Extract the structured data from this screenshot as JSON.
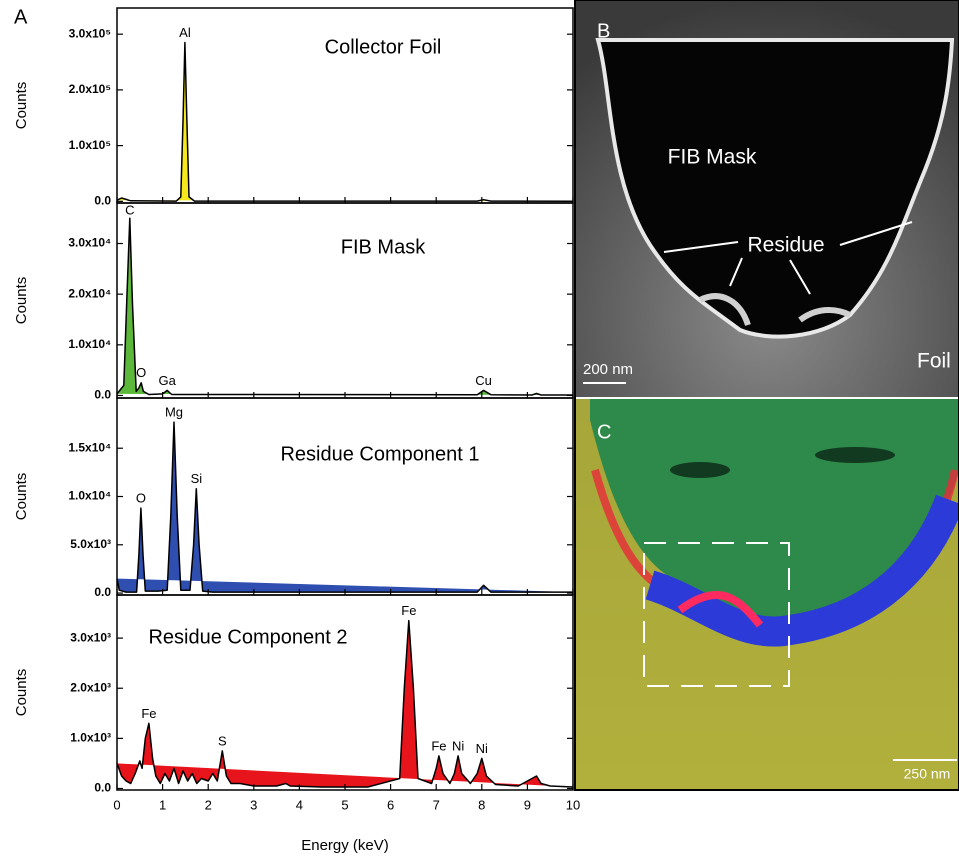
{
  "panel_label": "A",
  "chart_data": [
    {
      "type": "area",
      "title": "Collector Foil",
      "ylabel": "Counts",
      "color": "#f5e81c",
      "xlim": [
        0,
        10
      ],
      "ylim": [
        -3000,
        347000
      ],
      "yticks": [
        {
          "value": 0,
          "label": "0.0"
        },
        {
          "value": 100000,
          "label": "1.0x10⁵"
        },
        {
          "value": 200000,
          "label": "2.0x10⁵"
        },
        {
          "value": 300000,
          "label": "3.0x10⁵"
        }
      ],
      "x": [
        0,
        0.1,
        0.3,
        1.3,
        1.4,
        1.45,
        1.49,
        1.53,
        1.58,
        1.7,
        7.9,
        8.04,
        8.2,
        10
      ],
      "values": [
        2000,
        6000,
        1000,
        500,
        8000,
        150000,
        285000,
        150000,
        8000,
        500,
        500,
        3000,
        500,
        300
      ],
      "annotations": [
        {
          "text": "Al",
          "x": 1.49
        }
      ]
    },
    {
      "type": "area",
      "title": "FIB Mask",
      "ylabel": "Counts",
      "color": "#5cb83a",
      "xlim": [
        0,
        10
      ],
      "ylim": [
        -500,
        38000
      ],
      "yticks": [
        {
          "value": 0,
          "label": "0.0"
        },
        {
          "value": 10000,
          "label": "1.0x10⁴"
        },
        {
          "value": 20000,
          "label": "2.0x10⁴"
        },
        {
          "value": 30000,
          "label": "3.0x10⁴"
        }
      ],
      "x": [
        0,
        0.15,
        0.22,
        0.28,
        0.34,
        0.42,
        0.48,
        0.53,
        0.58,
        0.7,
        1.0,
        1.1,
        1.2,
        2.0,
        7.9,
        8.04,
        8.2,
        9.1,
        9.2,
        9.3,
        10
      ],
      "values": [
        300,
        2000,
        20000,
        35000,
        18000,
        800,
        1500,
        2500,
        800,
        200,
        300,
        1000,
        200,
        200,
        150,
        1000,
        150,
        100,
        400,
        100,
        100
      ],
      "annotations": [
        {
          "text": "C",
          "x": 0.28
        },
        {
          "text": "O",
          "x": 0.53
        },
        {
          "text": "Ga",
          "x": 1.1
        },
        {
          "text": "Cu",
          "x": 8.04
        }
      ]
    },
    {
      "type": "area",
      "title": "Residue Component 1",
      "ylabel": "Counts",
      "color": "#2f4fb0",
      "xlim": [
        0,
        10
      ],
      "ylim": [
        -200,
        20200
      ],
      "yticks": [
        {
          "value": 0,
          "label": "0.0"
        },
        {
          "value": 5000,
          "label": "5.0x10³"
        },
        {
          "value": 10000,
          "label": "1.0x10⁴"
        },
        {
          "value": 15000,
          "label": "1.5x10⁴"
        }
      ],
      "x": [
        0,
        0.05,
        0.2,
        0.43,
        0.48,
        0.525,
        0.57,
        0.62,
        0.9,
        1.1,
        1.18,
        1.25,
        1.32,
        1.4,
        1.6,
        1.68,
        1.74,
        1.8,
        1.88,
        2.1,
        7.9,
        8.04,
        8.2,
        10
      ],
      "values": [
        1500,
        300,
        100,
        100,
        4000,
        8800,
        4000,
        200,
        200,
        300,
        8000,
        17700,
        8000,
        300,
        300,
        5000,
        10800,
        5000,
        200,
        100,
        100,
        800,
        100,
        100
      ],
      "annotations": [
        {
          "text": "O",
          "x": 0.525
        },
        {
          "text": "Mg",
          "x": 1.25
        },
        {
          "text": "Si",
          "x": 1.74
        }
      ]
    },
    {
      "type": "area",
      "title": "Residue Component 2",
      "ylabel": "Counts",
      "xlabel": "Energy (keV)",
      "color": "#e8141c",
      "xlim": [
        0,
        10
      ],
      "ylim": [
        -30,
        3860
      ],
      "xticks": [
        0,
        1,
        2,
        3,
        4,
        5,
        6,
        7,
        8,
        9,
        10
      ],
      "yticks": [
        {
          "value": 0,
          "label": "0.0"
        },
        {
          "value": 1000,
          "label": "1.0x10³"
        },
        {
          "value": 2000,
          "label": "2.0x10³"
        },
        {
          "value": 3000,
          "label": "3.0x10³"
        }
      ],
      "x": [
        0,
        0.1,
        0.2,
        0.3,
        0.4,
        0.5,
        0.55,
        0.62,
        0.7,
        0.78,
        0.85,
        0.95,
        1.05,
        1.15,
        1.25,
        1.35,
        1.45,
        1.55,
        1.65,
        1.75,
        1.85,
        2.0,
        2.1,
        2.2,
        2.31,
        2.4,
        2.5,
        2.7,
        3.0,
        3.5,
        3.7,
        3.8,
        4.5,
        5.5,
        6.2,
        6.3,
        6.4,
        6.5,
        6.6,
        6.9,
        7.0,
        7.06,
        7.15,
        7.3,
        7.4,
        7.48,
        7.56,
        7.75,
        7.9,
        8.0,
        8.1,
        8.3,
        8.8,
        9.0,
        9.2,
        9.3,
        9.5,
        10
      ],
      "values": [
        500,
        250,
        150,
        100,
        300,
        550,
        400,
        1000,
        1300,
        600,
        250,
        100,
        300,
        150,
        400,
        100,
        350,
        150,
        300,
        100,
        200,
        150,
        300,
        150,
        750,
        250,
        100,
        100,
        50,
        50,
        100,
        50,
        30,
        30,
        200,
        2000,
        3350,
        2000,
        200,
        100,
        400,
        650,
        300,
        100,
        300,
        650,
        300,
        100,
        300,
        600,
        250,
        80,
        50,
        150,
        250,
        100,
        50,
        30
      ],
      "annotations": [
        {
          "text": "Fe",
          "x": 0.7
        },
        {
          "text": "S",
          "x": 2.31
        },
        {
          "text": "Fe",
          "x": 6.4
        },
        {
          "text": "Fe",
          "x": 7.06
        },
        {
          "text": "Ni",
          "x": 7.48
        },
        {
          "text": "Ni",
          "x": 8.0
        }
      ]
    }
  ],
  "image_b": {
    "label": "B",
    "mask": "FIB Mask",
    "residue": "Residue",
    "foil": "Foil",
    "scale": "200 nm"
  },
  "image_c": {
    "label": "C",
    "scale": "250 nm"
  }
}
